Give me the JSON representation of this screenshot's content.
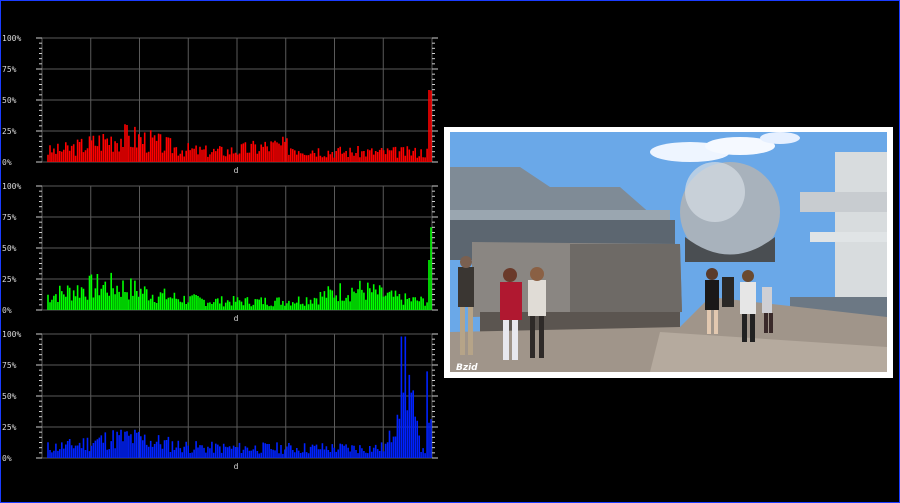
{
  "histograms": [
    {
      "id": "red",
      "color": "#ff0000",
      "ticks": [
        "100%",
        "75%",
        "50%",
        "25%",
        "0%"
      ],
      "axis_label": "d",
      "seed": 3,
      "profile": "red"
    },
    {
      "id": "green",
      "color": "#00ff00",
      "ticks": [
        "100%",
        "75%",
        "50%",
        "25%",
        "0%"
      ],
      "axis_label": "d",
      "seed": 7,
      "profile": "green"
    },
    {
      "id": "blue",
      "color": "#0022ff",
      "ticks": [
        "100%",
        "75%",
        "50%",
        "25%",
        "0%"
      ],
      "axis_label": "d",
      "seed": 11,
      "profile": "blue"
    }
  ],
  "preview": {
    "watermark": "Bzid",
    "colors": {
      "sky": "#6aa8e8",
      "building": "#8e9aa6",
      "sphere": "#b8c2cc",
      "ground": "#a4998c"
    }
  }
}
